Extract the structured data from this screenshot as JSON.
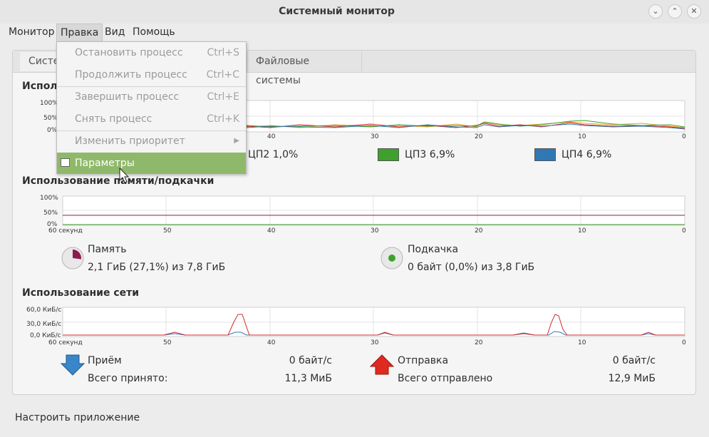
{
  "window": {
    "title": "Системный монитор"
  },
  "menubar": [
    "Монитор",
    "Правка",
    "Вид",
    "Помощь"
  ],
  "tabs": {
    "tab1": "Систе",
    "tab3": "Файловые системы"
  },
  "dropdown": {
    "items": [
      {
        "label": "Остановить процесс",
        "shortcut": "Ctrl+S"
      },
      {
        "label": "Продолжить процесс",
        "shortcut": "Ctrl+C"
      },
      {
        "label": "Завершить процесс",
        "shortcut": "Ctrl+E"
      },
      {
        "label": "Снять процесс",
        "shortcut": "Ctrl+K"
      },
      {
        "label": "Изменить приоритет",
        "shortcut": ""
      },
      {
        "label": "Параметры",
        "shortcut": ""
      }
    ]
  },
  "cpu": {
    "title_visible": "Использ",
    "y_ticks": [
      "100%",
      "50%",
      "0%"
    ],
    "x_ticks": [
      "40",
      "30",
      "20",
      "10",
      "0"
    ],
    "legend": [
      {
        "label": "ЦП2 1,0%",
        "color": "#d62828"
      },
      {
        "label": "ЦП3 6,9%",
        "color": "#3ea12e"
      },
      {
        "label": "ЦП4 6,9%",
        "color": "#2f78b4"
      }
    ]
  },
  "memory": {
    "title": "Использование памяти/подкачки",
    "y_ticks": [
      "100%",
      "50%",
      "0%"
    ],
    "x_ticks": [
      "60 секунд",
      "50",
      "40",
      "30",
      "20",
      "10",
      "0"
    ],
    "mem_label": "Память",
    "mem_value": "2,1 ГиБ (27,1%) из 7,8 ГиБ",
    "mem_percent": 27.1,
    "swap_label": "Подкачка",
    "swap_value": "0 байт (0,0%) из 3,8 ГиБ",
    "swap_percent": 0.0,
    "mem_color": "#8b1c4e",
    "swap_color": "#3ea12e"
  },
  "network": {
    "title": "Использование сети",
    "y_ticks": [
      "60,0 КиБ/с",
      "30,0 КиБ/с",
      "0,0 КиБ/с"
    ],
    "x_ticks": [
      "60 секунд",
      "50",
      "40",
      "30",
      "20",
      "10",
      "0"
    ],
    "recv_label": "Приём",
    "recv_rate": "0 байт/с",
    "recv_total_label": "Всего принято:",
    "recv_total": "11,3 МиБ",
    "send_label": "Отправка",
    "send_rate": "0 байт/с",
    "send_total_label": "Всего отправлено",
    "send_total": "12,9 МиБ",
    "recv_color": "#2f78b4",
    "send_color": "#d62828"
  },
  "footer": {
    "text": "Настроить приложение"
  }
}
